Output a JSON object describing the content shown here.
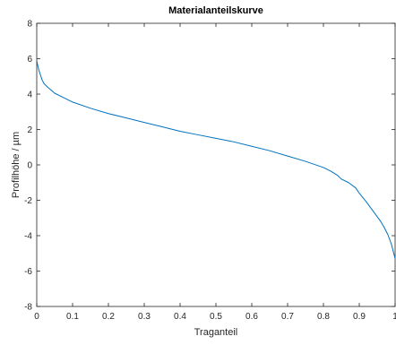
{
  "chart_data": {
    "type": "line",
    "title": "Materialanteilskurve",
    "xlabel": "Traganteil",
    "ylabel": "Profilhöhe / µm",
    "xlim": [
      0,
      1
    ],
    "ylim": [
      -8,
      8
    ],
    "xticks": [
      0,
      0.1,
      0.2,
      0.3,
      0.4,
      0.5,
      0.6,
      0.7,
      0.8,
      0.9,
      1
    ],
    "xtick_labels": [
      "0",
      "0.1",
      "0.2",
      "0.3",
      "0.4",
      "0.5",
      "0.6",
      "0.7",
      "0.8",
      "0.9",
      "1"
    ],
    "yticks": [
      -8,
      -6,
      -4,
      -2,
      0,
      2,
      4,
      6,
      8
    ],
    "ytick_labels": [
      "-8",
      "-6",
      "-4",
      "-2",
      "0",
      "2",
      "4",
      "6",
      "8"
    ],
    "grid": false,
    "line_color": "#0072bd",
    "series": [
      {
        "x": [
          0,
          0.003,
          0.006,
          0.01,
          0.015,
          0.02,
          0.03,
          0.05,
          0.07,
          0.1,
          0.15,
          0.2,
          0.25,
          0.3,
          0.35,
          0.4,
          0.45,
          0.5,
          0.55,
          0.6,
          0.65,
          0.7,
          0.75,
          0.8,
          0.82,
          0.84,
          0.85,
          0.87,
          0.89,
          0.9,
          0.92,
          0.94,
          0.96,
          0.97,
          0.98,
          0.99,
          0.995,
          1
        ],
        "y": [
          5.9,
          5.6,
          5.35,
          5.1,
          4.8,
          4.6,
          4.4,
          4.05,
          3.85,
          3.55,
          3.2,
          2.9,
          2.65,
          2.4,
          2.15,
          1.9,
          1.7,
          1.5,
          1.3,
          1.05,
          0.8,
          0.5,
          0.2,
          -0.15,
          -0.35,
          -0.6,
          -0.8,
          -1.0,
          -1.3,
          -1.6,
          -2.1,
          -2.65,
          -3.2,
          -3.55,
          -3.95,
          -4.5,
          -4.9,
          -5.3
        ]
      }
    ]
  }
}
